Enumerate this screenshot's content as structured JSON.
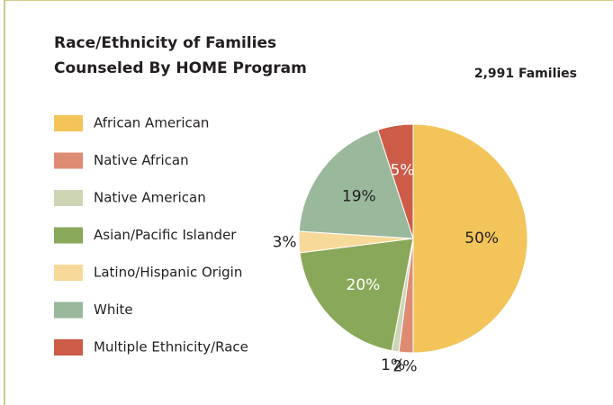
{
  "chart_data": {
    "type": "pie",
    "title": [
      "Race/Ethnicity of Families",
      "Counseled By HOME Program"
    ],
    "subtitle": "2,991 Families",
    "categories": [
      "African American",
      "Native African",
      "Native American",
      "Asian/Pacific Islander",
      "Latino/Hispanic Origin",
      "White",
      "Multiple Ethnicity/Race"
    ],
    "values": [
      50,
      2,
      1,
      20,
      3,
      19,
      5
    ],
    "value_labels": [
      "50%",
      "2%",
      "1%",
      "20%",
      "3%",
      "19%",
      "5%"
    ],
    "colors": [
      "#f2c45a",
      "#de8b74",
      "#cdd5b5",
      "#8aa85a",
      "#f7d99a",
      "#9ab89c",
      "#cc5b47"
    ],
    "legend": "left"
  }
}
